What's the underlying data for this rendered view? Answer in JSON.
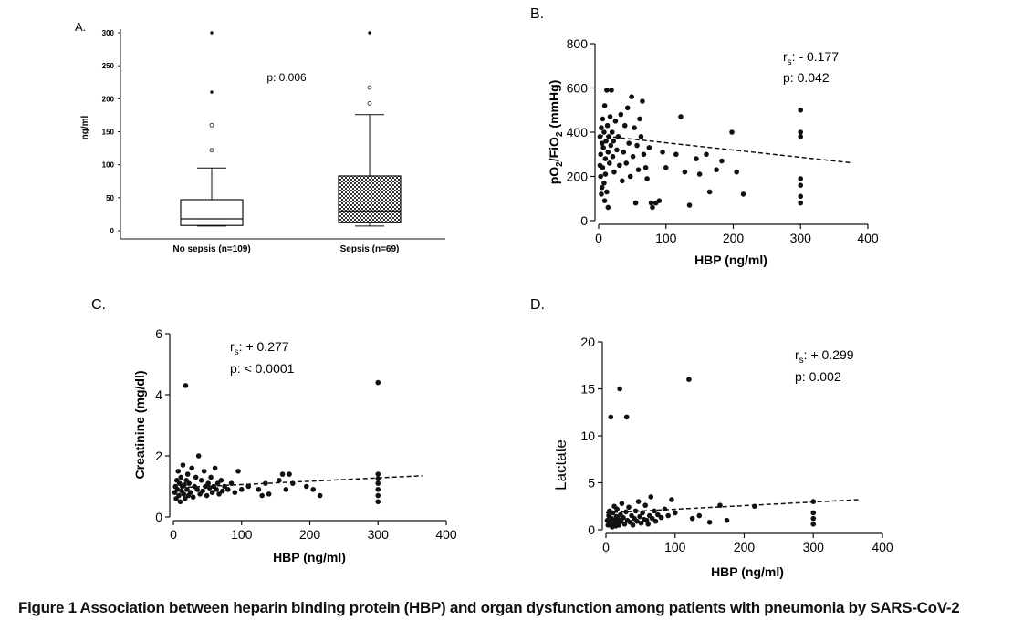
{
  "caption": "Figure 1 Association between heparin binding protein (HBP) and organ dysfunction among patients with pneumonia by SARS-CoV-2",
  "colors": {
    "ink": "#111111",
    "box_fill_hatch": "#555555"
  },
  "chart_data": [
    {
      "panel": "A.",
      "type": "box",
      "ylabel": "ng/ml",
      "yticks": [
        0,
        50,
        100,
        150,
        200,
        250,
        300
      ],
      "ylim": [
        0,
        300
      ],
      "annotation": "p: 0.006",
      "groups": [
        {
          "label": "No sepsis (n=109)",
          "whisker_low": 7,
          "q1": 8,
          "median": 18,
          "q3": 47,
          "whisker_high": 95,
          "outliers": [
            122,
            160,
            210,
            300
          ],
          "fill": "white"
        },
        {
          "label": "Sepsis (n=69)",
          "whisker_low": 7,
          "q1": 12,
          "median": 30,
          "q3": 83,
          "whisker_high": 176,
          "outliers": [
            193,
            217,
            300
          ],
          "fill": "checkered"
        }
      ]
    },
    {
      "panel": "B.",
      "type": "scatter",
      "xlabel": "HBP (ng/ml)",
      "ylabel_main": "pO",
      "ylabel_sub1": "2",
      "ylabel_mid": "/FiO",
      "ylabel_sub2": "2",
      "ylabel_tail": " (mmHg)",
      "xticks": [
        0,
        100,
        200,
        300,
        400
      ],
      "yticks": [
        0,
        200,
        400,
        600,
        800
      ],
      "xlim": [
        0,
        400
      ],
      "ylim": [
        0,
        800
      ],
      "rs_prefix": "r",
      "rs_sub": "s",
      "rs_value": ": - 0.177",
      "p_text": "p: 0.042",
      "trend": {
        "x": [
          0,
          375
        ],
        "y": [
          385,
          262
        ]
      },
      "points": [
        [
          2,
          380
        ],
        [
          3,
          300
        ],
        [
          4,
          420
        ],
        [
          2,
          250
        ],
        [
          5,
          350
        ],
        [
          6,
          460
        ],
        [
          3,
          200
        ],
        [
          7,
          330
        ],
        [
          8,
          400
        ],
        [
          5,
          150
        ],
        [
          9,
          520
        ],
        [
          10,
          280
        ],
        [
          4,
          120
        ],
        [
          11,
          360
        ],
        [
          12,
          590
        ],
        [
          6,
          240
        ],
        [
          13,
          430
        ],
        [
          14,
          310
        ],
        [
          8,
          170
        ],
        [
          15,
          380
        ],
        [
          16,
          260
        ],
        [
          9,
          90
        ],
        [
          17,
          470
        ],
        [
          18,
          340
        ],
        [
          10,
          210
        ],
        [
          19,
          590
        ],
        [
          20,
          400
        ],
        [
          12,
          130
        ],
        [
          21,
          290
        ],
        [
          22,
          360
        ],
        [
          14,
          60
        ],
        [
          23,
          220
        ],
        [
          25,
          450
        ],
        [
          27,
          320
        ],
        [
          29,
          380
        ],
        [
          31,
          250
        ],
        [
          33,
          480
        ],
        [
          35,
          180
        ],
        [
          37,
          310
        ],
        [
          39,
          430
        ],
        [
          41,
          260
        ],
        [
          43,
          510
        ],
        [
          45,
          350
        ],
        [
          47,
          200
        ],
        [
          49,
          560
        ],
        [
          51,
          290
        ],
        [
          53,
          420
        ],
        [
          55,
          80
        ],
        [
          57,
          340
        ],
        [
          59,
          230
        ],
        [
          61,
          460
        ],
        [
          63,
          380
        ],
        [
          65,
          540
        ],
        [
          67,
          300
        ],
        [
          70,
          240
        ],
        [
          72,
          190
        ],
        [
          75,
          330
        ],
        [
          78,
          80
        ],
        [
          80,
          60
        ],
        [
          85,
          80
        ],
        [
          90,
          90
        ],
        [
          95,
          310
        ],
        [
          100,
          240
        ],
        [
          115,
          300
        ],
        [
          122,
          470
        ],
        [
          128,
          220
        ],
        [
          135,
          70
        ],
        [
          145,
          280
        ],
        [
          150,
          210
        ],
        [
          160,
          300
        ],
        [
          165,
          130
        ],
        [
          175,
          230
        ],
        [
          183,
          270
        ],
        [
          198,
          400
        ],
        [
          205,
          220
        ],
        [
          215,
          120
        ],
        [
          300,
          500
        ],
        [
          300,
          400
        ],
        [
          300,
          380
        ],
        [
          300,
          190
        ],
        [
          300,
          160
        ],
        [
          300,
          110
        ],
        [
          300,
          80
        ]
      ]
    },
    {
      "panel": "C.",
      "type": "scatter",
      "xlabel": "HBP (ng/ml)",
      "ylabel": "Creatinine (mg/dl)",
      "xticks": [
        0,
        100,
        200,
        300,
        400
      ],
      "yticks": [
        0,
        2,
        4,
        6
      ],
      "xlim": [
        0,
        400
      ],
      "ylim": [
        0,
        6
      ],
      "rs_prefix": "r",
      "rs_sub": "s",
      "rs_value": ": + 0.277",
      "p_text": "p: < 0.0001",
      "trend": {
        "x": [
          0,
          365
        ],
        "y": [
          0.95,
          1.35
        ]
      },
      "points": [
        [
          2,
          0.8
        ],
        [
          3,
          1.0
        ],
        [
          4,
          0.6
        ],
        [
          5,
          1.2
        ],
        [
          6,
          0.9
        ],
        [
          7,
          1.5
        ],
        [
          8,
          0.7
        ],
        [
          9,
          1.1
        ],
        [
          10,
          0.5
        ],
        [
          11,
          1.3
        ],
        [
          12,
          0.85
        ],
        [
          13,
          1.0
        ],
        [
          14,
          1.7
        ],
        [
          15,
          0.75
        ],
        [
          16,
          1.05
        ],
        [
          17,
          0.6
        ],
        [
          18,
          4.3
        ],
        [
          19,
          1.2
        ],
        [
          20,
          0.9
        ],
        [
          21,
          1.4
        ],
        [
          22,
          0.7
        ],
        [
          23,
          1.1
        ],
        [
          25,
          0.8
        ],
        [
          27,
          1.6
        ],
        [
          29,
          0.65
        ],
        [
          31,
          1.0
        ],
        [
          33,
          1.3
        ],
        [
          35,
          0.9
        ],
        [
          37,
          2.0
        ],
        [
          39,
          0.75
        ],
        [
          41,
          1.2
        ],
        [
          43,
          0.85
        ],
        [
          45,
          1.5
        ],
        [
          47,
          1.0
        ],
        [
          49,
          0.7
        ],
        [
          51,
          1.1
        ],
        [
          53,
          0.95
        ],
        [
          55,
          1.3
        ],
        [
          57,
          0.8
        ],
        [
          59,
          1.0
        ],
        [
          61,
          1.6
        ],
        [
          63,
          0.9
        ],
        [
          65,
          1.1
        ],
        [
          67,
          0.75
        ],
        [
          70,
          1.2
        ],
        [
          72,
          0.85
        ],
        [
          75,
          1.0
        ],
        [
          80,
          0.9
        ],
        [
          85,
          1.1
        ],
        [
          90,
          0.8
        ],
        [
          95,
          1.5
        ],
        [
          100,
          0.9
        ],
        [
          110,
          1.0
        ],
        [
          125,
          0.9
        ],
        [
          130,
          0.7
        ],
        [
          135,
          1.1
        ],
        [
          140,
          0.75
        ],
        [
          155,
          1.2
        ],
        [
          160,
          1.4
        ],
        [
          165,
          0.9
        ],
        [
          170,
          1.4
        ],
        [
          175,
          1.1
        ],
        [
          195,
          1.0
        ],
        [
          205,
          0.9
        ],
        [
          215,
          0.7
        ],
        [
          300,
          4.4
        ],
        [
          300,
          1.4
        ],
        [
          300,
          1.25
        ],
        [
          300,
          1.1
        ],
        [
          300,
          0.9
        ],
        [
          300,
          0.7
        ],
        [
          300,
          0.5
        ]
      ]
    },
    {
      "panel": "D.",
      "type": "scatter",
      "xlabel": "HBP (ng/ml)",
      "ylabel": "Lactate",
      "xticks": [
        0,
        100,
        200,
        300,
        400
      ],
      "yticks": [
        0,
        5,
        10,
        15,
        20
      ],
      "xlim": [
        0,
        400
      ],
      "ylim": [
        0,
        20
      ],
      "rs_prefix": "r",
      "rs_sub": "s",
      "rs_value": ": + 0.299",
      "p_text": "p: 0.002",
      "trend": {
        "x": [
          0,
          365
        ],
        "y": [
          1.8,
          3.2
        ]
      },
      "points": [
        [
          2,
          1.0
        ],
        [
          3,
          0.5
        ],
        [
          4,
          1.5
        ],
        [
          5,
          2.0
        ],
        [
          6,
          0.8
        ],
        [
          7,
          12
        ],
        [
          8,
          1.2
        ],
        [
          9,
          0.3
        ],
        [
          10,
          1.8
        ],
        [
          11,
          0.6
        ],
        [
          12,
          2.5
        ],
        [
          13,
          1.0
        ],
        [
          14,
          0.4
        ],
        [
          15,
          1.4
        ],
        [
          16,
          2.2
        ],
        [
          17,
          0.7
        ],
        [
          18,
          1.1
        ],
        [
          19,
          0.5
        ],
        [
          20,
          15
        ],
        [
          21,
          1.6
        ],
        [
          22,
          0.9
        ],
        [
          23,
          2.8
        ],
        [
          25,
          1.3
        ],
        [
          27,
          0.6
        ],
        [
          29,
          1.9
        ],
        [
          30,
          12
        ],
        [
          31,
          1.0
        ],
        [
          33,
          2.4
        ],
        [
          35,
          0.8
        ],
        [
          37,
          1.5
        ],
        [
          39,
          0.5
        ],
        [
          41,
          1.2
        ],
        [
          43,
          2.0
        ],
        [
          45,
          0.9
        ],
        [
          47,
          3.0
        ],
        [
          49,
          1.4
        ],
        [
          51,
          0.7
        ],
        [
          53,
          1.8
        ],
        [
          55,
          1.1
        ],
        [
          57,
          2.6
        ],
        [
          59,
          1.0
        ],
        [
          61,
          0.6
        ],
        [
          63,
          1.5
        ],
        [
          65,
          3.5
        ],
        [
          67,
          1.2
        ],
        [
          70,
          2.0
        ],
        [
          72,
          0.9
        ],
        [
          75,
          1.6
        ],
        [
          80,
          1.3
        ],
        [
          85,
          2.2
        ],
        [
          90,
          1.5
        ],
        [
          95,
          3.2
        ],
        [
          100,
          1.8
        ],
        [
          120,
          16
        ],
        [
          125,
          1.2
        ],
        [
          135,
          1.5
        ],
        [
          150,
          0.8
        ],
        [
          165,
          2.6
        ],
        [
          175,
          1.0
        ],
        [
          215,
          2.5
        ],
        [
          300,
          3.0
        ],
        [
          300,
          1.8
        ],
        [
          300,
          1.2
        ],
        [
          300,
          0.6
        ]
      ]
    }
  ]
}
